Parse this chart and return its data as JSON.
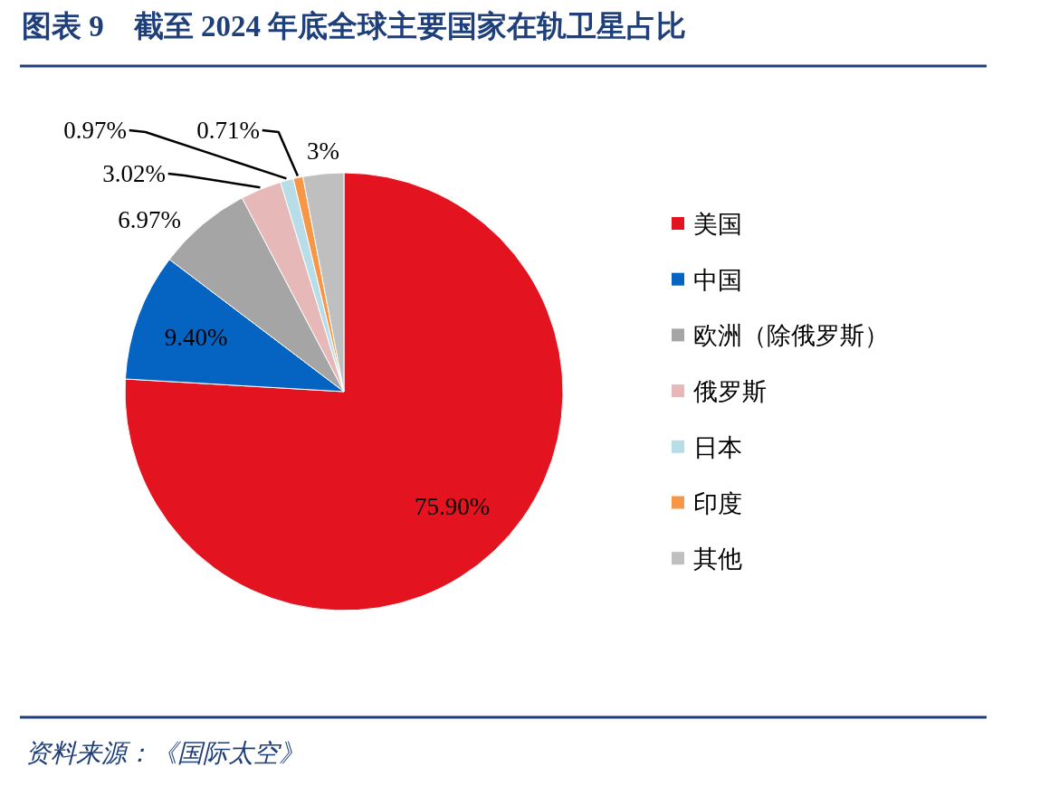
{
  "chart_data": {
    "type": "pie",
    "title": "图表 9　截至 2024 年底全球主要国家在轨卫星占比",
    "categories": [
      "美国",
      "中国",
      "欧洲（除俄罗斯）",
      "俄罗斯",
      "日本",
      "印度",
      "其他"
    ],
    "values": [
      75.9,
      9.4,
      6.97,
      3.02,
      0.97,
      0.71,
      3
    ],
    "value_labels": [
      "75.90%",
      "9.40%",
      "6.97%",
      "3.02%",
      "0.97%",
      "0.71%",
      "3%"
    ],
    "colors": [
      "#e3141f",
      "#0563c1",
      "#a5a5a5",
      "#e6b9b8",
      "#b7dee8",
      "#f79646",
      "#bfbfbf"
    ],
    "legend": "right",
    "annotations": [
      "资料来源：《国际太空》"
    ]
  }
}
